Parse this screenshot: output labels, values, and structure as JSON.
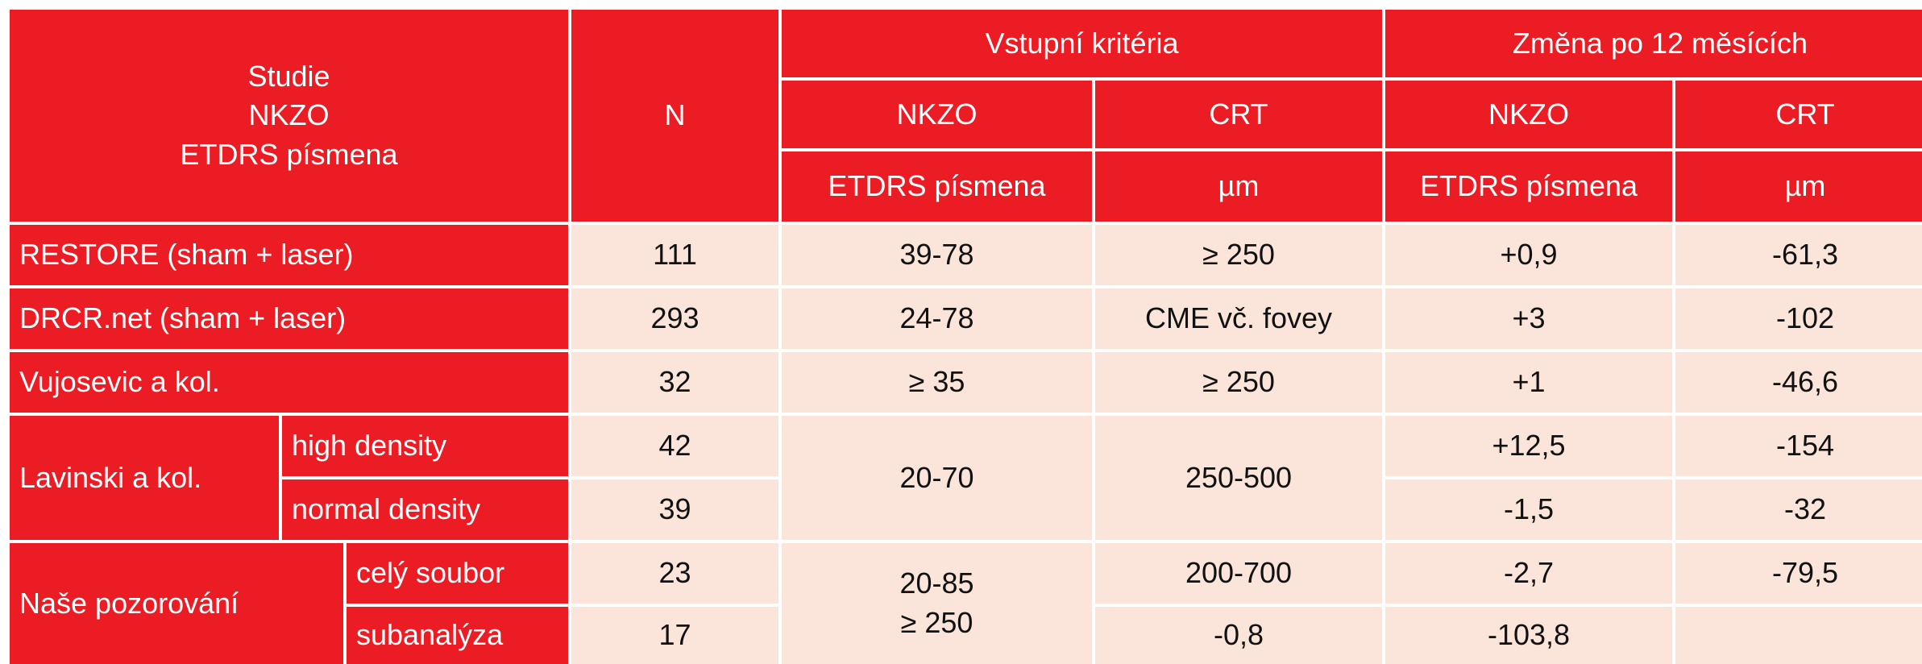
{
  "header": {
    "study_lines": [
      "Studie",
      "NKZO",
      "ETDRS písmena"
    ],
    "n": "N",
    "entry_group": "Vstupní kritéria",
    "change_group": "Změna po 12 měsících",
    "nkzo": "NKZO",
    "crt": "CRT",
    "etdrs": "ETDRS písmena",
    "um": "µm"
  },
  "rows": [
    {
      "study": "RESTORE (sham + laser)",
      "n": "111",
      "entry_nkzo": "39-78",
      "entry_crt": "≥ 250",
      "change_nkzo": "+0,9",
      "change_crt": "-61,3"
    },
    {
      "study": "DRCR.net (sham + laser)",
      "n": "293",
      "entry_nkzo": "24-78",
      "entry_crt": "CME vč. fovey",
      "change_nkzo": "+3",
      "change_crt": "-102"
    },
    {
      "study": "Vujosevic a kol.",
      "n": "32",
      "entry_nkzo": "≥ 35",
      "entry_crt": "≥ 250",
      "change_nkzo": "+1",
      "change_crt": "-46,6"
    }
  ],
  "lavinski": {
    "study": "Lavinski a kol.",
    "entry_nkzo": "20-70",
    "entry_crt": "250-500",
    "subrows": [
      {
        "label": "high density",
        "n": "42",
        "change_nkzo": "+12,5",
        "change_crt": "-154"
      },
      {
        "label": "normal density",
        "n": "39",
        "change_nkzo": "-1,5",
        "change_crt": "-32"
      }
    ]
  },
  "nase": {
    "study": "Naše pozorování",
    "entry_nkzo_lines": [
      "20-85",
      "≥ 250"
    ],
    "subrows": [
      {
        "label": "celý soubor",
        "n": "23",
        "entry_crt": "200-700",
        "change_nkzo": "-2,7",
        "change_crt": "-79,5"
      },
      {
        "label": "subanalýza",
        "n": "17",
        "entry_crt": "-0,8",
        "change_nkzo": "-103,8",
        "change_crt": ""
      }
    ]
  },
  "colors": {
    "header_red": "#ec1c24",
    "cell_peach": "#fbe5da"
  }
}
